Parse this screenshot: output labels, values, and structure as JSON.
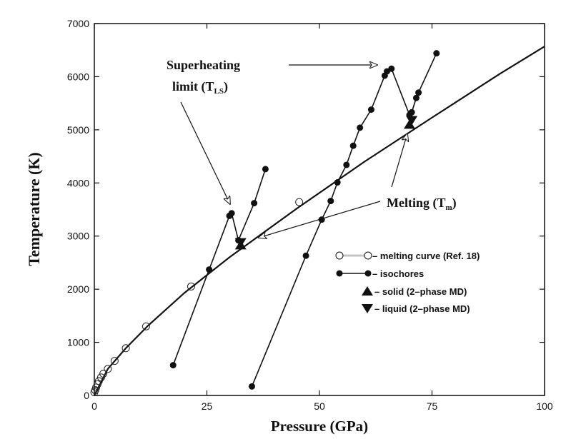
{
  "chart_data": {
    "type": "scatter",
    "xlabel": "Pressure (GPa)",
    "ylabel": "Temperature (K)",
    "xlim": [
      0,
      100
    ],
    "ylim": [
      0,
      7000
    ],
    "xticks": [
      "0",
      "25",
      "50",
      "75",
      "100"
    ],
    "yticks": [
      "0",
      "1000",
      "2000",
      "3000",
      "4000",
      "5000",
      "6000",
      "7000"
    ],
    "grid": false,
    "legend_position": "lower-right",
    "series": [
      {
        "name": "melting curve (Ref. 18)",
        "style": "open-circle-line",
        "x": [
          0,
          0.2,
          0.4,
          0.7,
          1.0,
          1.5,
          2.0,
          3.0,
          4.5,
          7.0,
          11.5,
          21.5,
          45.5
        ],
        "y": [
          60,
          100,
          150,
          210,
          270,
          340,
          410,
          500,
          650,
          890,
          1300,
          2050,
          3640
        ]
      },
      {
        "name": "isochores",
        "style": "filled-circle-line",
        "x": [
          17.5,
          25.5,
          30.0,
          30.5,
          32.0,
          35.5,
          38.0
        ],
        "y": [
          570,
          2370,
          3380,
          3430,
          2920,
          3620,
          4260
        ]
      },
      {
        "name": "isochores",
        "style": "filled-circle-line",
        "x": [
          35.0,
          47.0,
          50.5,
          52.5,
          54.0,
          56.0,
          57.5,
          59.0,
          61.5,
          64.5,
          65.0,
          66.0,
          70.0,
          70.5,
          71.5,
          72.0,
          76.0
        ],
        "y": [
          170,
          2630,
          3310,
          3660,
          4010,
          4340,
          4700,
          5040,
          5380,
          6020,
          6100,
          6150,
          5280,
          5330,
          5600,
          5700,
          6440
        ]
      },
      {
        "name": "solid (2-phase MD)",
        "style": "triangle-up",
        "x": [
          32.5,
          70.0
        ],
        "y": [
          2830,
          5100
        ]
      },
      {
        "name": "liquid (2-phase MD)",
        "style": "triangle-down",
        "x": [
          32.5,
          70.5
        ],
        "y": [
          2880,
          5180
        ]
      }
    ],
    "fit_line": {
      "x": [
        0,
        3,
        7,
        12,
        20,
        30,
        45,
        60,
        75,
        90,
        100
      ],
      "y": [
        0,
        500,
        890,
        1320,
        1930,
        2600,
        3520,
        4400,
        5230,
        6050,
        6570
      ]
    },
    "annotations": [
      {
        "id": "superheating",
        "lines": [
          "Superheating",
          "limit (T"
        ],
        "sub": "LS",
        "close": ")"
      },
      {
        "id": "melting",
        "text": "Melting (T",
        "sub": "m",
        "close": ")"
      }
    ],
    "legend": [
      {
        "marker": "open-circle-line",
        "text": "– melting curve (Ref. 18)"
      },
      {
        "marker": "filled-circle-line",
        "text": "– isochores"
      },
      {
        "marker": "triangle-up",
        "text": "– solid (2–phase MD)"
      },
      {
        "marker": "triangle-down",
        "text": "– liquid (2–phase MD)"
      }
    ]
  }
}
